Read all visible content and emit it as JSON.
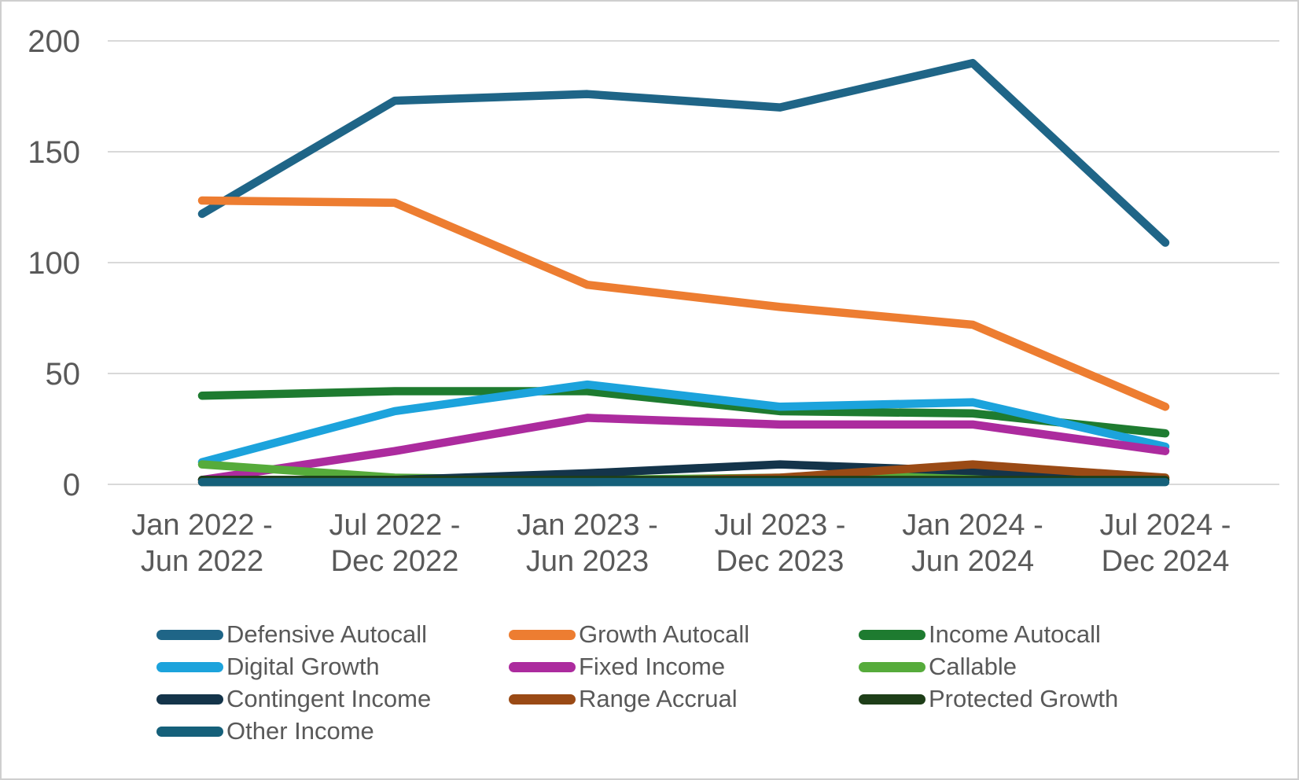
{
  "chart_data": {
    "type": "line",
    "title": "",
    "categories": [
      "Jan 2022 - Jun 2022",
      "Jul 2022 - Dec 2022",
      "Jan 2023 - Jun 2023",
      "Jul 2023 - Dec 2023",
      "Jan 2024 - Jun 2024",
      "Jul 2024 - Dec 2024"
    ],
    "xlabel": "",
    "ylabel": "",
    "ylim": [
      0,
      200
    ],
    "yticks": [
      0,
      50,
      100,
      150,
      200
    ],
    "grid": true,
    "legend_position": "bottom",
    "series": [
      {
        "name": "Defensive Autocall",
        "color": "#1F6587",
        "values": [
          122,
          173,
          176,
          170,
          190,
          109
        ]
      },
      {
        "name": "Growth Autocall",
        "color": "#ED7D31",
        "values": [
          128,
          127,
          90,
          80,
          72,
          35
        ]
      },
      {
        "name": "Income Autocall",
        "color": "#1E7B30",
        "values": [
          40,
          42,
          42,
          33,
          32,
          23
        ]
      },
      {
        "name": "Digital Growth",
        "color": "#1CA3DC",
        "values": [
          10,
          33,
          45,
          35,
          37,
          17
        ]
      },
      {
        "name": "Fixed Income",
        "color": "#AC2B9E",
        "values": [
          2,
          15,
          30,
          27,
          27,
          15
        ]
      },
      {
        "name": "Callable",
        "color": "#56AB3B",
        "values": [
          9,
          3,
          2,
          3,
          4,
          3
        ]
      },
      {
        "name": "Contingent Income",
        "color": "#14344A",
        "values": [
          2,
          2,
          5,
          9,
          6,
          2
        ]
      },
      {
        "name": "Range Accrual",
        "color": "#9A4A15",
        "values": [
          1,
          1,
          1,
          3,
          9,
          3
        ]
      },
      {
        "name": "Protected Growth",
        "color": "#1E3E18",
        "values": [
          2,
          2,
          2,
          2,
          2,
          2
        ]
      },
      {
        "name": "Other Income",
        "color": "#15607A",
        "values": [
          1,
          1,
          1,
          1,
          1,
          1
        ]
      }
    ]
  },
  "style": {
    "axis_text_color": "#595959",
    "gridline_color": "#D9D9D9",
    "background": "#FFFFFF",
    "border_color": "#CFCFCF"
  }
}
